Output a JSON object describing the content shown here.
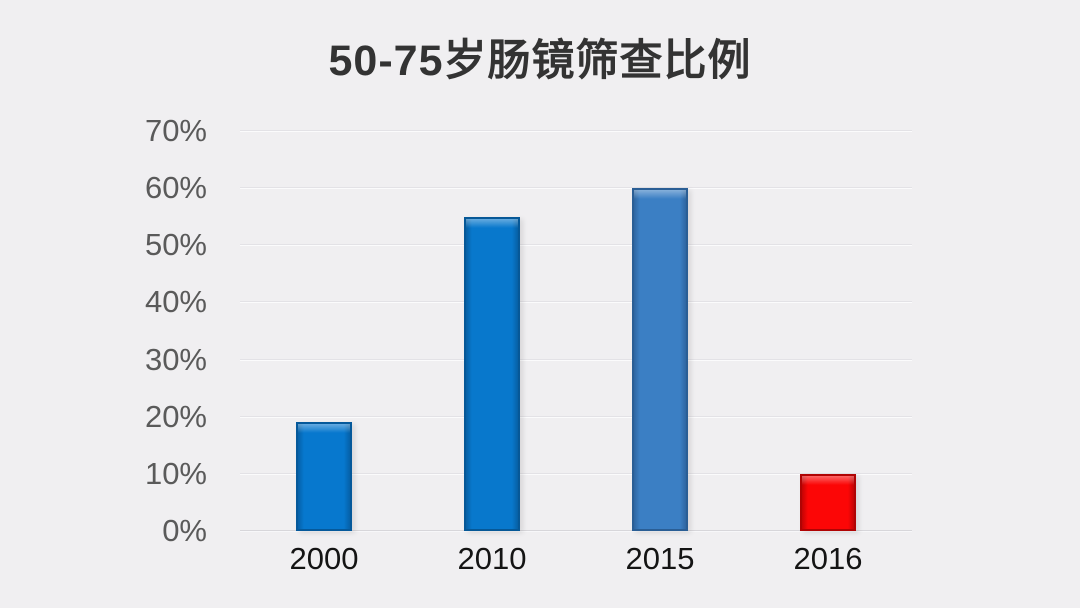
{
  "title": "50-75岁肠镜筛查比例",
  "colors": {
    "background": "#f0eff1",
    "title_text": "#333333",
    "ytick_text": "#5a5a5a",
    "xtick_text": "#141414",
    "gridline": "#e3e2e6",
    "baseline": "#d7d6da"
  },
  "chart_data": {
    "type": "bar",
    "title": "50-75岁肠镜筛查比例",
    "categories": [
      "2000",
      "2010",
      "2015",
      "2016"
    ],
    "values": [
      19,
      55,
      60,
      10
    ],
    "unit": "%",
    "bar_colors": [
      "#0778ce",
      "#0878cc",
      "#3b7fc4",
      "#fc0606"
    ],
    "bar_edge_colors": [
      "#05599b",
      "#065897",
      "#2a5e95",
      "#b00404"
    ],
    "xlabel": "",
    "ylabel": "",
    "ylim": [
      0,
      70
    ],
    "ytick_step": 10,
    "ytick_labels": [
      "0%",
      "10%",
      "20%",
      "30%",
      "40%",
      "50%",
      "60%",
      "70%"
    ],
    "grid": true,
    "legend": false
  }
}
